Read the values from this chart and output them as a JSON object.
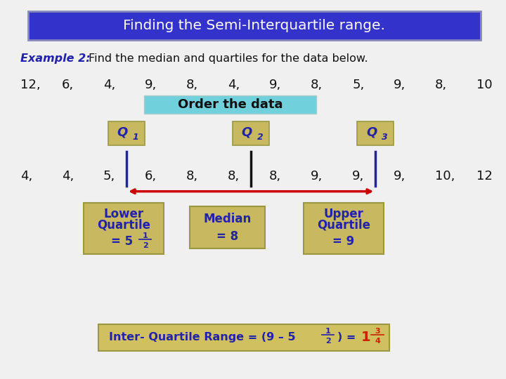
{
  "title": "Finding the Semi-Interquartile range.",
  "title_bg": "#3333cc",
  "title_border": "#8888bb",
  "title_fg": "#ffffff",
  "example_label": "Example 2:",
  "example_rest": "  Find the median and quartiles for the data below.",
  "bg_color": "#f0f0f0",
  "gold_color": "#c8b860",
  "gold_border": "#999944",
  "cyan_color": "#70d0dc",
  "blue_text": "#2222aa",
  "black_text": "#111111",
  "red_color": "#cc0000",
  "orange_red": "#cc2200",
  "bottom_bg": "#d0c060",
  "raw_nums": [
    "12,",
    "6,",
    "4,",
    "9,",
    "8,",
    "4,",
    "9,",
    "8,",
    "5,",
    "9,",
    "8,",
    "10"
  ],
  "ord_nums": [
    "4,",
    "4,",
    "5,",
    "6,",
    "8,",
    "8,",
    "8,",
    "9,",
    "9,",
    "9,",
    "10,",
    "12"
  ]
}
